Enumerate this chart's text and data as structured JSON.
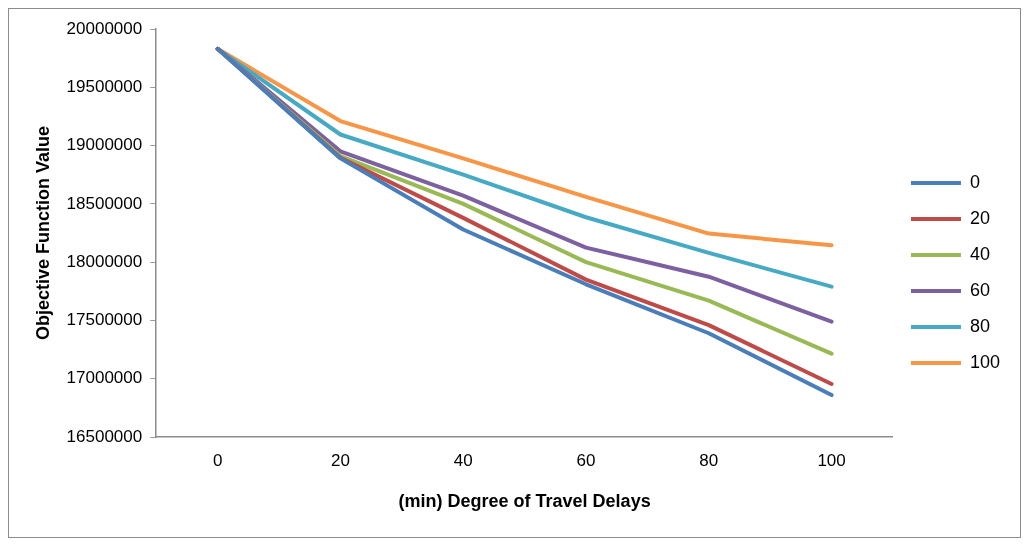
{
  "chart_data": {
    "type": "line",
    "xlabel": "(min) Degree of Travel Delays",
    "ylabel": "Objective Function Value",
    "categories": [
      "0",
      "20",
      "40",
      "60",
      "80",
      "100"
    ],
    "series": [
      {
        "name": "0",
        "color": "#4a7ebb",
        "values": [
          19830000,
          18890000,
          18280000,
          17810000,
          17390000,
          16860000
        ]
      },
      {
        "name": "20",
        "color": "#be4b48",
        "values": [
          19830000,
          18895000,
          18380000,
          17850000,
          17460000,
          16955000
        ]
      },
      {
        "name": "40",
        "color": "#98b954",
        "values": [
          19830000,
          18910000,
          18500000,
          18000000,
          17670000,
          17215000
        ]
      },
      {
        "name": "60",
        "color": "#7d60a0",
        "values": [
          19830000,
          18950000,
          18570000,
          18125000,
          17875000,
          17490000
        ]
      },
      {
        "name": "80",
        "color": "#46aac5",
        "values": [
          19830000,
          19095000,
          18750000,
          18385000,
          18080000,
          17790000
        ]
      },
      {
        "name": "100",
        "color": "#f79646",
        "values": [
          19830000,
          19210000,
          18890000,
          18560000,
          18245000,
          18145000
        ]
      }
    ],
    "ylim": [
      16500000,
      20000000
    ],
    "yticks": [
      16500000,
      17000000,
      17500000,
      18000000,
      18500000,
      19000000,
      19500000,
      20000000
    ],
    "grid": false,
    "legend": "right",
    "marker": "none",
    "line_style": "solid"
  }
}
